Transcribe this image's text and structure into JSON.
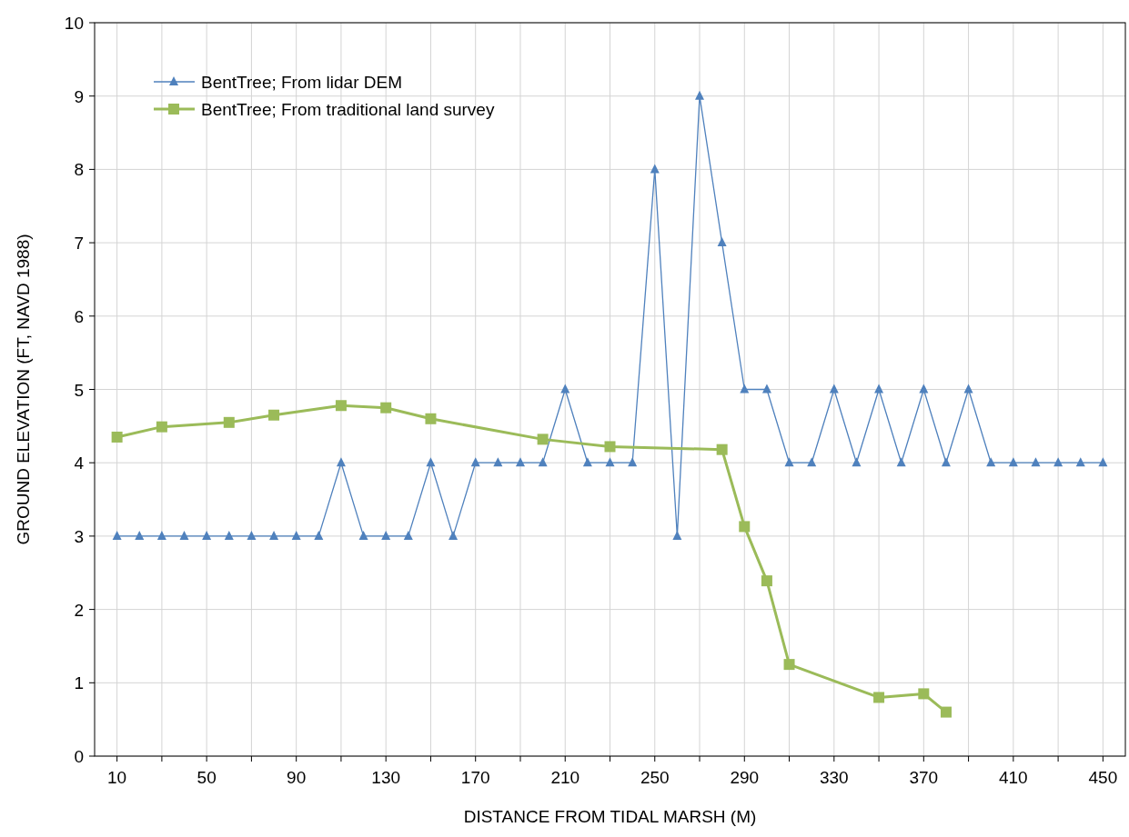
{
  "chart_data": {
    "type": "line",
    "xlabel": "DISTANCE FROM TIDAL MARSH (M)",
    "ylabel": "GROUND ELEVATION (FT, NAVD 1988)",
    "xlim": [
      0,
      460
    ],
    "ylim": [
      0,
      10
    ],
    "xticks": [
      10,
      {
        "value": 30,
        "label": null
      },
      50,
      {
        "value": 70,
        "label": null
      },
      90,
      {
        "value": 110,
        "label": null
      },
      130,
      {
        "value": 150,
        "label": null
      },
      170,
      {
        "value": 190,
        "label": null
      },
      210,
      {
        "value": 230,
        "label": null
      },
      250,
      {
        "value": 270,
        "label": null
      },
      290,
      {
        "value": 310,
        "label": null
      },
      330,
      {
        "value": 350,
        "label": null
      },
      370,
      {
        "value": 390,
        "label": null
      },
      410,
      {
        "value": 430,
        "label": null
      },
      450
    ],
    "yticks": [
      0,
      1,
      2,
      3,
      4,
      5,
      6,
      7,
      8,
      9,
      10
    ],
    "grid": true,
    "legend": "top left",
    "series": [
      {
        "name": "BentTree; From lidar DEM",
        "color": "#4f81bd",
        "marker": "triangle",
        "x": [
          10,
          20,
          30,
          40,
          50,
          60,
          70,
          80,
          90,
          100,
          110,
          120,
          130,
          140,
          150,
          160,
          170,
          180,
          190,
          200,
          210,
          220,
          230,
          240,
          250,
          260,
          270,
          280,
          290,
          300,
          310,
          320,
          330,
          340,
          350,
          360,
          370,
          380,
          390,
          400,
          410,
          420,
          430,
          440,
          450
        ],
        "values": [
          3,
          3,
          3,
          3,
          3,
          3,
          3,
          3,
          3,
          3,
          4,
          3,
          3,
          3,
          4,
          3,
          4,
          4,
          4,
          4,
          5,
          4,
          4,
          4,
          8,
          3,
          9,
          7,
          5,
          5,
          4,
          4,
          5,
          4,
          5,
          4,
          5,
          4,
          5,
          4,
          4,
          4,
          4,
          4,
          4
        ]
      },
      {
        "name": "BentTree; From traditional land survey",
        "color": "#9bbb59",
        "marker": "square",
        "x": [
          10,
          30,
          60,
          80,
          110,
          130,
          150,
          200,
          230,
          280,
          290,
          300,
          310,
          350,
          370,
          380
        ],
        "values": [
          4.35,
          4.49,
          4.55,
          4.65,
          4.78,
          4.75,
          4.6,
          4.32,
          4.22,
          4.18,
          3.13,
          2.39,
          1.25,
          0.8,
          0.85,
          0.6
        ]
      }
    ]
  }
}
